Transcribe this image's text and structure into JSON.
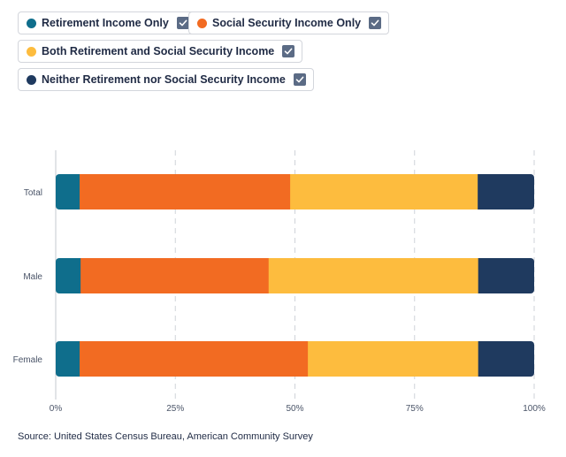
{
  "legend": [
    {
      "label": "Retirement Income Only",
      "color": "#0f6e8c",
      "checked": true
    },
    {
      "label": "Social Security Income Only",
      "color": "#f26b22",
      "checked": true
    },
    {
      "label": "Both Retirement and Social Security Income",
      "color": "#fdbc3e",
      "checked": true
    },
    {
      "label": "Neither Retirement nor Social Security Income",
      "color": "#1f3a5f",
      "checked": true
    }
  ],
  "chart_data": {
    "type": "bar",
    "orientation": "horizontal",
    "stacked": true,
    "categories": [
      "Total",
      "Male",
      "Female"
    ],
    "series": [
      {
        "name": "Retirement Income Only",
        "color": "#0f6e8c",
        "values": [
          5,
          5.2,
          5
        ]
      },
      {
        "name": "Social Security Income Only",
        "color": "#f26b22",
        "values": [
          44,
          39.3,
          47.7
        ]
      },
      {
        "name": "Both Retirement and Social Security Income",
        "color": "#fdbc3e",
        "values": [
          39.2,
          43.8,
          35.6
        ]
      },
      {
        "name": "Neither Retirement nor Social Security Income",
        "color": "#1f3a5f",
        "values": [
          11.8,
          11.7,
          11.7
        ]
      }
    ],
    "xlim": [
      0,
      100
    ],
    "xticks": [
      0,
      25,
      50,
      75,
      100
    ],
    "xtick_labels": [
      "0%",
      "25%",
      "50%",
      "75%",
      "100%"
    ],
    "grid": "vertical dashed"
  },
  "source": "Source: United States Census Bureau, American Community Survey"
}
